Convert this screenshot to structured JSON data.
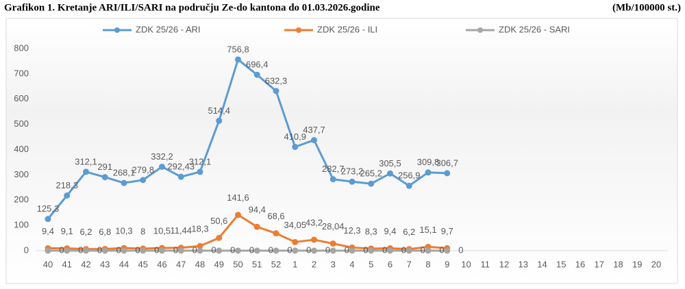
{
  "chart_data": {
    "type": "line",
    "title": "Grafikon 1. Kretanje ARI/ILI/SARI na području Ze-do kantona do 01.03.2026.godine",
    "subtitle": "(Mb/100000 st.)",
    "categories": [
      "40",
      "41",
      "42",
      "43",
      "44",
      "45",
      "46",
      "47",
      "48",
      "49",
      "50",
      "51",
      "52",
      "1",
      "2",
      "3",
      "4",
      "5",
      "6",
      "7",
      "8",
      "9",
      "10",
      "11",
      "12",
      "13",
      "14",
      "15",
      "16",
      "17",
      "18",
      "19",
      "20"
    ],
    "ylim": [
      0,
      800
    ],
    "yticks": [
      0,
      100,
      200,
      300,
      400,
      500,
      600,
      700,
      800
    ],
    "grid": false,
    "legend": "top",
    "series": [
      {
        "name": "ZDK 25/26 - ARI",
        "color": "#5b9bd5",
        "values": [
          125.3,
          218.3,
          312.1,
          291,
          268.1,
          279.8,
          332.2,
          292.43,
          312.1,
          514.4,
          756.8,
          696.4,
          632.3,
          410.9,
          437.7,
          282.7,
          273.2,
          265.2,
          305.5,
          256.9,
          309.8,
          306.7,
          null,
          null,
          null,
          null,
          null,
          null,
          null,
          null,
          null,
          null,
          null
        ],
        "value_labels": [
          "125,3",
          "218,3",
          "312,1",
          "291",
          "268,1",
          "279,8",
          "332,2",
          "292,43",
          "312,1",
          "514,4",
          "756,8",
          "696,4",
          "632,3",
          "410,9",
          "437,7",
          "282,7",
          "273,2",
          "265,2",
          "305,5",
          "256,9",
          "309,8",
          "306,7",
          null,
          null,
          null,
          null,
          null,
          null,
          null,
          null,
          null,
          null,
          null
        ]
      },
      {
        "name": "ZDK 25/26 - ILI",
        "color": "#ed7d31",
        "values": [
          9.4,
          9.1,
          6.2,
          6.8,
          10.3,
          8,
          10.5,
          11.44,
          18.3,
          50.6,
          141.6,
          94.4,
          68.6,
          34.05,
          43.2,
          28.04,
          12.3,
          8.3,
          9.4,
          6.2,
          15.1,
          9.7,
          null,
          null,
          null,
          null,
          null,
          null,
          null,
          null,
          null,
          null,
          null
        ],
        "value_labels": [
          "9,4",
          "9,1",
          "6,2",
          "6,8",
          "10,3",
          "8",
          "10,5",
          "11,44",
          "18,3",
          "50,6",
          "141,6",
          "94,4",
          "68,6",
          "34,05",
          "43,2",
          "28,04",
          "12,3",
          "8,3",
          "9,4",
          "6,2",
          "15,1",
          "9,7",
          null,
          null,
          null,
          null,
          null,
          null,
          null,
          null,
          null,
          null,
          null
        ]
      },
      {
        "name": "ZDK 25/26 - SARI",
        "color": "#a5a5a5",
        "values": [
          0,
          0,
          0,
          0,
          0,
          0,
          0,
          0,
          0,
          0,
          0,
          0,
          0,
          0,
          0,
          0,
          0,
          0,
          0,
          0,
          0,
          0,
          null,
          null,
          null,
          null,
          null,
          null,
          null,
          null,
          null,
          null,
          null
        ]
      }
    ]
  }
}
